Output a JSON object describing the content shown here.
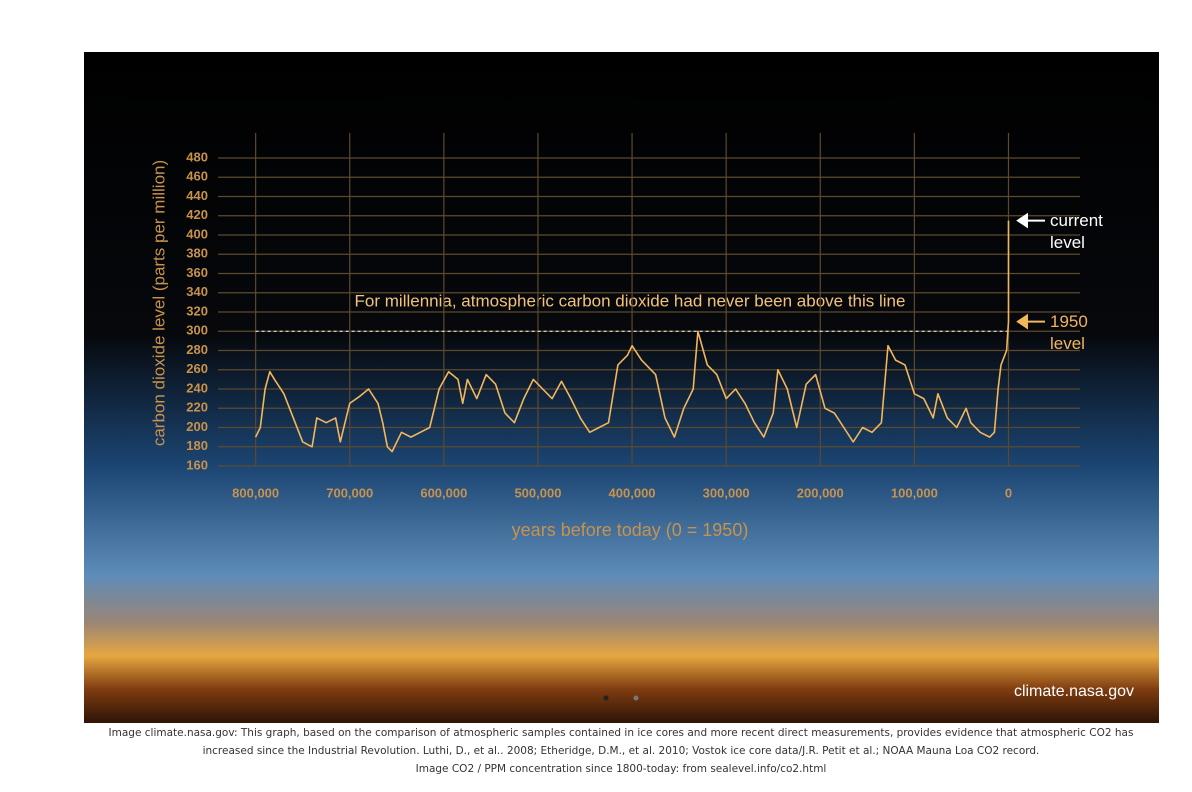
{
  "chart_data": {
    "type": "line",
    "ylabel": "carbon dioxide level (parts per million)",
    "xlabel": "years before today (0 = 1950)",
    "annotation": "For millennia, atmospheric carbon dioxide had never been above this line",
    "threshold": 300,
    "markers": [
      {
        "text": "current level"
      },
      {
        "text": "1950 level"
      }
    ],
    "credit": "climate.nasa.gov",
    "color": "#f2b65c",
    "x": [
      800000,
      795000,
      790000,
      785000,
      780000,
      770000,
      760000,
      750000,
      740000,
      735000,
      725000,
      715000,
      710000,
      700000,
      690000,
      680000,
      670000,
      665000,
      660000,
      655000,
      645000,
      635000,
      625000,
      615000,
      605000,
      595000,
      585000,
      580000,
      575000,
      565000,
      555000,
      545000,
      535000,
      525000,
      515000,
      505000,
      495000,
      485000,
      475000,
      465000,
      455000,
      445000,
      435000,
      425000,
      415000,
      405000,
      400000,
      390000,
      375000,
      365000,
      355000,
      345000,
      335000,
      330000,
      320000,
      310000,
      300000,
      290000,
      280000,
      270000,
      260000,
      250000,
      245000,
      235000,
      225000,
      215000,
      205000,
      195000,
      185000,
      175000,
      165000,
      155000,
      145000,
      135000,
      128000,
      120000,
      110000,
      100000,
      90000,
      80000,
      75000,
      65000,
      55000,
      45000,
      40000,
      30000,
      20000,
      15000,
      11000,
      8000,
      2000,
      0,
      -70
    ],
    "values": [
      190,
      200,
      240,
      258,
      250,
      235,
      210,
      185,
      180,
      210,
      205,
      210,
      185,
      225,
      232,
      240,
      225,
      205,
      180,
      175,
      195,
      190,
      195,
      200,
      240,
      258,
      250,
      225,
      250,
      230,
      255,
      245,
      215,
      205,
      230,
      250,
      240,
      230,
      248,
      230,
      210,
      195,
      200,
      205,
      265,
      275,
      285,
      270,
      255,
      210,
      190,
      220,
      240,
      300,
      265,
      255,
      230,
      240,
      225,
      205,
      190,
      215,
      260,
      240,
      200,
      245,
      255,
      220,
      215,
      200,
      185,
      200,
      195,
      205,
      285,
      270,
      265,
      235,
      230,
      210,
      235,
      210,
      200,
      220,
      205,
      195,
      190,
      195,
      240,
      265,
      280,
      310,
      415
    ],
    "xlim": [
      840000,
      -76000
    ],
    "ylim": [
      160,
      480
    ],
    "xticks": [
      {
        "value": 800000,
        "label": "800,000"
      },
      {
        "value": 700000,
        "label": "700,000"
      },
      {
        "value": 600000,
        "label": "600,000"
      },
      {
        "value": 500000,
        "label": "500,000"
      },
      {
        "value": 400000,
        "label": "400,000"
      },
      {
        "value": 300000,
        "label": "300,000"
      },
      {
        "value": 200000,
        "label": "200,000"
      },
      {
        "value": 100000,
        "label": "100,000"
      },
      0
    ],
    "yticks": [
      160,
      180,
      200,
      220,
      240,
      260,
      280,
      300,
      320,
      340,
      360,
      380,
      400,
      420,
      440,
      460,
      480
    ],
    "grid": true
  },
  "caption": [
    "Image climate.nasa.gov: This graph, based on the comparison of atmospheric samples contained in ice cores and more recent direct measurements, provides evidence that atmospheric CO2 has increased since the Industrial Revolution. Luthi, D., et al.. 2008; Etheridge, D.M., et al. 2010; Vostok ice core data/J.R. Petit et al.; NOAA Mauna Loa CO2 record.",
    "Image CO2 / PPM concentration since 1800-today: from sealevel.info/co2.html"
  ]
}
